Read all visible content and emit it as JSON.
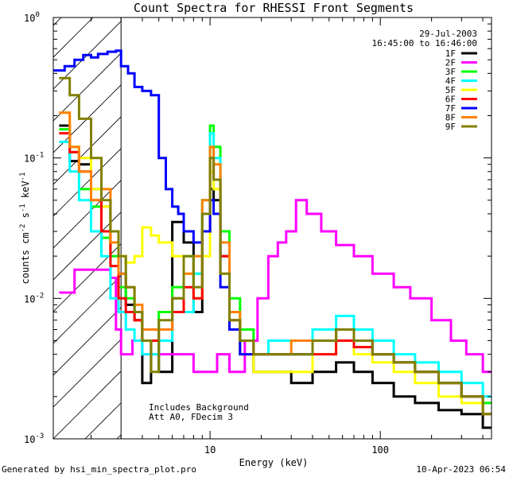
{
  "chart_data": {
    "type": "line",
    "title": "Count Spectra for RHESSI Front Segments",
    "xlabel": "Energy (keV)",
    "ylabel": {
      "base": "counts cm",
      "exp1": "-2",
      "mid": " s",
      "exp2": "-1",
      "tail": " keV",
      "exp3": "-1"
    },
    "x_scale": "log",
    "y_scale": "log",
    "xlim": [
      1.2,
      450
    ],
    "ylim": [
      0.001,
      1
    ],
    "x_ticks": [
      {
        "value": 10,
        "label": "10"
      },
      {
        "value": 100,
        "label": "100"
      }
    ],
    "y_ticks": [
      {
        "value": 1,
        "base": "10",
        "exp": "0"
      },
      {
        "value": 0.1,
        "base": "10",
        "exp": "-1"
      },
      {
        "value": 0.01,
        "base": "10",
        "exp": "-2"
      },
      {
        "value": 0.001,
        "base": "10",
        "exp": "-3"
      }
    ],
    "hatched_region": {
      "x_from": 1.2,
      "x_to": 3
    },
    "date": "29-Jul-2003",
    "time_range": "16:45:00 to 16:46:00",
    "annotations": [
      "Includes Background",
      "Att A0, FDecim 3"
    ],
    "legend_position": "top-right",
    "series": [
      {
        "name": "1F",
        "color": "#000000",
        "points": [
          [
            1.3,
            0.17
          ],
          [
            1.5,
            0.095
          ],
          [
            1.7,
            0.09
          ],
          [
            2.0,
            0.06
          ],
          [
            2.3,
            0.045
          ],
          [
            2.6,
            0.025
          ],
          [
            2.9,
            0.015
          ],
          [
            3.2,
            0.009
          ],
          [
            3.6,
            0.007
          ],
          [
            4.0,
            0.0025
          ],
          [
            4.5,
            0.005
          ],
          [
            5.0,
            0.003
          ],
          [
            6.0,
            0.035
          ],
          [
            7.0,
            0.025
          ],
          [
            8.0,
            0.008
          ],
          [
            9.0,
            0.03
          ],
          [
            10.0,
            0.06
          ],
          [
            10.5,
            0.05
          ],
          [
            11.5,
            0.02
          ],
          [
            13,
            0.006
          ],
          [
            15,
            0.004
          ],
          [
            18,
            0.003
          ],
          [
            22,
            0.003
          ],
          [
            30,
            0.0025
          ],
          [
            40,
            0.003
          ],
          [
            55,
            0.0035
          ],
          [
            70,
            0.003
          ],
          [
            90,
            0.0025
          ],
          [
            120,
            0.002
          ],
          [
            160,
            0.0018
          ],
          [
            220,
            0.0016
          ],
          [
            300,
            0.0015
          ],
          [
            400,
            0.0012
          ]
        ]
      },
      {
        "name": "2F",
        "color": "#ff00ff",
        "points": [
          [
            1.3,
            0.011
          ],
          [
            1.6,
            0.016
          ],
          [
            2.0,
            0.016
          ],
          [
            2.3,
            0.016
          ],
          [
            2.6,
            0.014
          ],
          [
            2.8,
            0.006
          ],
          [
            3.0,
            0.004
          ],
          [
            3.5,
            0.005
          ],
          [
            4.0,
            0.004
          ],
          [
            5.0,
            0.004
          ],
          [
            6.0,
            0.004
          ],
          [
            7.0,
            0.004
          ],
          [
            8.0,
            0.003
          ],
          [
            9.0,
            0.003
          ],
          [
            11,
            0.004
          ],
          [
            13,
            0.003
          ],
          [
            16,
            0.005
          ],
          [
            19,
            0.01
          ],
          [
            22,
            0.02
          ],
          [
            25,
            0.025
          ],
          [
            28,
            0.03
          ],
          [
            32,
            0.05
          ],
          [
            37,
            0.04
          ],
          [
            45,
            0.03
          ],
          [
            55,
            0.024
          ],
          [
            70,
            0.02
          ],
          [
            90,
            0.015
          ],
          [
            120,
            0.012
          ],
          [
            150,
            0.01
          ],
          [
            200,
            0.007
          ],
          [
            260,
            0.005
          ],
          [
            320,
            0.004
          ],
          [
            400,
            0.003
          ]
        ]
      },
      {
        "name": "3F",
        "color": "#00ff00",
        "points": [
          [
            1.3,
            0.16
          ],
          [
            1.5,
            0.11
          ],
          [
            1.7,
            0.06
          ],
          [
            2.0,
            0.045
          ],
          [
            2.3,
            0.027
          ],
          [
            2.6,
            0.02
          ],
          [
            2.9,
            0.012
          ],
          [
            3.2,
            0.01
          ],
          [
            3.6,
            0.008
          ],
          [
            4.0,
            0.006
          ],
          [
            5.0,
            0.008
          ],
          [
            6.0,
            0.012
          ],
          [
            7.0,
            0.02
          ],
          [
            8.0,
            0.015
          ],
          [
            9.0,
            0.05
          ],
          [
            10.0,
            0.17
          ],
          [
            10.5,
            0.12
          ],
          [
            11.5,
            0.03
          ],
          [
            13,
            0.01
          ],
          [
            15,
            0.006
          ],
          [
            18,
            0.004
          ],
          [
            22,
            0.004
          ],
          [
            30,
            0.004
          ],
          [
            40,
            0.005
          ],
          [
            55,
            0.006
          ],
          [
            70,
            0.005
          ],
          [
            90,
            0.004
          ],
          [
            120,
            0.0035
          ],
          [
            160,
            0.003
          ],
          [
            220,
            0.0025
          ],
          [
            300,
            0.002
          ],
          [
            400,
            0.0018
          ]
        ]
      },
      {
        "name": "4F",
        "color": "#00ffff",
        "points": [
          [
            1.3,
            0.13
          ],
          [
            1.5,
            0.08
          ],
          [
            1.7,
            0.05
          ],
          [
            2.0,
            0.03
          ],
          [
            2.3,
            0.02
          ],
          [
            2.6,
            0.01
          ],
          [
            2.9,
            0.008
          ],
          [
            3.2,
            0.006
          ],
          [
            3.6,
            0.005
          ],
          [
            4.0,
            0.004
          ],
          [
            5.0,
            0.005
          ],
          [
            6.0,
            0.01
          ],
          [
            7.0,
            0.008
          ],
          [
            8.0,
            0.015
          ],
          [
            9.0,
            0.05
          ],
          [
            10.0,
            0.15
          ],
          [
            10.5,
            0.1
          ],
          [
            11.5,
            0.02
          ],
          [
            13,
            0.006
          ],
          [
            15,
            0.005
          ],
          [
            18,
            0.004
          ],
          [
            22,
            0.005
          ],
          [
            30,
            0.005
          ],
          [
            40,
            0.006
          ],
          [
            55,
            0.0075
          ],
          [
            70,
            0.006
          ],
          [
            90,
            0.005
          ],
          [
            120,
            0.004
          ],
          [
            160,
            0.0035
          ],
          [
            220,
            0.003
          ],
          [
            300,
            0.0025
          ],
          [
            400,
            0.002
          ]
        ]
      },
      {
        "name": "5F",
        "color": "#ffff00",
        "points": [
          [
            1.3,
            0.21
          ],
          [
            1.5,
            0.12
          ],
          [
            1.7,
            0.1
          ],
          [
            2.0,
            0.06
          ],
          [
            2.3,
            0.045
          ],
          [
            2.6,
            0.025
          ],
          [
            2.9,
            0.02
          ],
          [
            3.2,
            0.018
          ],
          [
            3.6,
            0.02
          ],
          [
            4.0,
            0.032
          ],
          [
            4.5,
            0.028
          ],
          [
            5.0,
            0.025
          ],
          [
            6.0,
            0.02
          ],
          [
            7.0,
            0.015
          ],
          [
            8.0,
            0.01
          ],
          [
            9.0,
            0.02
          ],
          [
            10.0,
            0.08
          ],
          [
            10.5,
            0.06
          ],
          [
            11.5,
            0.015
          ],
          [
            13,
            0.006
          ],
          [
            15,
            0.004
          ],
          [
            18,
            0.003
          ],
          [
            22,
            0.003
          ],
          [
            30,
            0.003
          ],
          [
            40,
            0.004
          ],
          [
            55,
            0.005
          ],
          [
            70,
            0.004
          ],
          [
            90,
            0.0035
          ],
          [
            120,
            0.003
          ],
          [
            160,
            0.0025
          ],
          [
            220,
            0.002
          ],
          [
            300,
            0.0018
          ],
          [
            400,
            0.0015
          ]
        ]
      },
      {
        "name": "6F",
        "color": "#ff0000",
        "points": [
          [
            1.3,
            0.15
          ],
          [
            1.5,
            0.11
          ],
          [
            1.7,
            0.08
          ],
          [
            2.0,
            0.05
          ],
          [
            2.3,
            0.03
          ],
          [
            2.6,
            0.017
          ],
          [
            2.9,
            0.01
          ],
          [
            3.2,
            0.008
          ],
          [
            3.6,
            0.007
          ],
          [
            4.0,
            0.005
          ],
          [
            5.0,
            0.006
          ],
          [
            6.0,
            0.008
          ],
          [
            7.0,
            0.012
          ],
          [
            8.0,
            0.01
          ],
          [
            9.0,
            0.03
          ],
          [
            10.0,
            0.1
          ],
          [
            10.5,
            0.07
          ],
          [
            11.5,
            0.02
          ],
          [
            13,
            0.007
          ],
          [
            15,
            0.005
          ],
          [
            18,
            0.004
          ],
          [
            22,
            0.004
          ],
          [
            30,
            0.004
          ],
          [
            40,
            0.004
          ],
          [
            55,
            0.005
          ],
          [
            70,
            0.0045
          ],
          [
            90,
            0.004
          ],
          [
            120,
            0.0035
          ],
          [
            160,
            0.003
          ],
          [
            220,
            0.0025
          ],
          [
            300,
            0.002
          ],
          [
            400,
            0.0015
          ]
        ]
      },
      {
        "name": "7F",
        "color": "#0000ff",
        "points": [
          [
            1.2,
            0.42
          ],
          [
            1.4,
            0.45
          ],
          [
            1.6,
            0.5
          ],
          [
            1.8,
            0.54
          ],
          [
            2.0,
            0.52
          ],
          [
            2.2,
            0.55
          ],
          [
            2.5,
            0.57
          ],
          [
            2.8,
            0.58
          ],
          [
            3.0,
            0.45
          ],
          [
            3.3,
            0.4
          ],
          [
            3.6,
            0.32
          ],
          [
            4.0,
            0.3
          ],
          [
            4.5,
            0.28
          ],
          [
            5.0,
            0.1
          ],
          [
            5.5,
            0.06
          ],
          [
            6.0,
            0.045
          ],
          [
            6.5,
            0.04
          ],
          [
            7.0,
            0.03
          ],
          [
            8.0,
            0.025
          ],
          [
            9.0,
            0.03
          ],
          [
            10.0,
            0.05
          ],
          [
            10.5,
            0.04
          ],
          [
            11.5,
            0.012
          ],
          [
            13,
            0.006
          ],
          [
            15,
            0.004
          ],
          [
            18,
            0.004
          ],
          [
            22,
            0.004
          ],
          [
            30,
            0.004
          ],
          [
            40,
            0.005
          ],
          [
            55,
            0.006
          ],
          [
            70,
            0.005
          ],
          [
            90,
            0.004
          ],
          [
            120,
            0.0035
          ],
          [
            160,
            0.003
          ],
          [
            220,
            0.0025
          ],
          [
            300,
            0.002
          ],
          [
            400,
            0.0015
          ]
        ]
      },
      {
        "name": "8F",
        "color": "#ff8000",
        "points": [
          [
            1.3,
            0.21
          ],
          [
            1.5,
            0.12
          ],
          [
            1.7,
            0.08
          ],
          [
            2.0,
            0.05
          ],
          [
            2.3,
            0.06
          ],
          [
            2.6,
            0.025
          ],
          [
            2.9,
            0.015
          ],
          [
            3.2,
            0.012
          ],
          [
            3.6,
            0.009
          ],
          [
            4.0,
            0.006
          ],
          [
            5.0,
            0.006
          ],
          [
            6.0,
            0.01
          ],
          [
            7.0,
            0.015
          ],
          [
            8.0,
            0.02
          ],
          [
            9.0,
            0.05
          ],
          [
            10.0,
            0.12
          ],
          [
            10.5,
            0.09
          ],
          [
            11.5,
            0.025
          ],
          [
            13,
            0.008
          ],
          [
            15,
            0.005
          ],
          [
            18,
            0.004
          ],
          [
            22,
            0.004
          ],
          [
            30,
            0.005
          ],
          [
            40,
            0.005
          ],
          [
            55,
            0.006
          ],
          [
            70,
            0.005
          ],
          [
            90,
            0.004
          ],
          [
            120,
            0.0035
          ],
          [
            160,
            0.003
          ],
          [
            220,
            0.0025
          ],
          [
            300,
            0.002
          ],
          [
            400,
            0.0015
          ]
        ]
      },
      {
        "name": "9F",
        "color": "#808000",
        "points": [
          [
            1.3,
            0.37
          ],
          [
            1.5,
            0.28
          ],
          [
            1.7,
            0.19
          ],
          [
            2.0,
            0.1
          ],
          [
            2.3,
            0.05
          ],
          [
            2.6,
            0.03
          ],
          [
            2.9,
            0.02
          ],
          [
            3.2,
            0.012
          ],
          [
            3.6,
            0.008
          ],
          [
            4.0,
            0.005
          ],
          [
            4.5,
            0.003
          ],
          [
            5.0,
            0.007
          ],
          [
            6.0,
            0.01
          ],
          [
            7.0,
            0.02
          ],
          [
            8.0,
            0.012
          ],
          [
            9.0,
            0.04
          ],
          [
            10.0,
            0.1
          ],
          [
            10.5,
            0.07
          ],
          [
            11.5,
            0.015
          ],
          [
            13,
            0.007
          ],
          [
            15,
            0.005
          ],
          [
            18,
            0.004
          ],
          [
            22,
            0.004
          ],
          [
            30,
            0.004
          ],
          [
            40,
            0.005
          ],
          [
            55,
            0.006
          ],
          [
            70,
            0.005
          ],
          [
            90,
            0.004
          ],
          [
            120,
            0.0035
          ],
          [
            160,
            0.003
          ],
          [
            220,
            0.0025
          ],
          [
            300,
            0.002
          ],
          [
            400,
            0.0015
          ]
        ]
      }
    ]
  },
  "footer": {
    "generated_by": "Generated by hsi_min_spectra_plot.pro",
    "timestamp": "10-Apr-2023 06:54"
  }
}
